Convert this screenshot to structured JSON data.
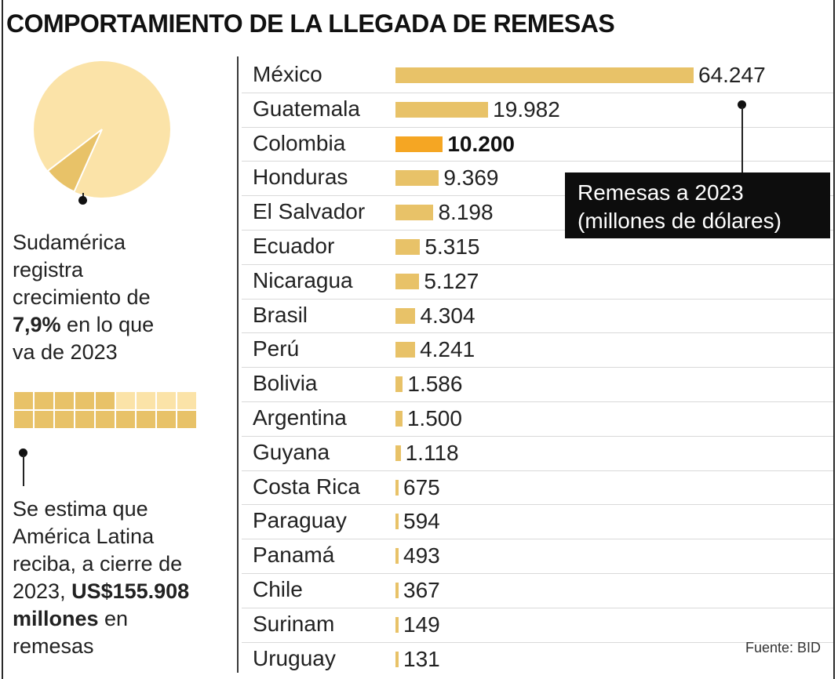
{
  "title": "COMPORTAMIENTO DE LA LLEGADA DE REMESAS",
  "pie": {
    "share_percent": 7.9,
    "colors": {
      "slice": "#e8c268",
      "rest": "#fbe3a8"
    }
  },
  "note_south_america": {
    "line1": "Sudamérica",
    "line2": "registra",
    "line3": "crecimiento de",
    "line4_bold": "7,9%",
    "line4_rest": " en lo que",
    "line5": "va de 2023"
  },
  "waffle": {
    "rows": 2,
    "cols": 9,
    "filled_top_row": 5,
    "filled_bottom_row": 9,
    "colors": {
      "filled": "#e8c268",
      "empty": "#fbe3a8"
    }
  },
  "note_latam": {
    "line1": "Se estima que",
    "line2": "América Latina",
    "line3": "reciba, a cierre de",
    "line4_pre": "2023, ",
    "line4_bold": "US$155.908",
    "line5_bold": "millones",
    "line5_rest": " en",
    "line6": "remesas"
  },
  "legend": {
    "line1": "Remesas a 2023",
    "line2": "(millones de dólares)"
  },
  "source": "Fuente: BID",
  "chart_data": {
    "type": "bar",
    "orientation": "horizontal",
    "title": "COMPORTAMIENTO DE LA LLEGADA DE REMESAS",
    "categories": [
      "México",
      "Guatemala",
      "Colombia",
      "Honduras",
      "El Salvador",
      "Ecuador",
      "Nicaragua",
      "Brasil",
      "Perú",
      "Bolivia",
      "Argentina",
      "Guyana",
      "Costa Rica",
      "Paraguay",
      "Panamá",
      "Chile",
      "Surinam",
      "Uruguay"
    ],
    "values": [
      64247,
      19982,
      10200,
      9369,
      8198,
      5315,
      5127,
      4304,
      4241,
      1586,
      1500,
      1118,
      675,
      594,
      493,
      367,
      149,
      131
    ],
    "labels": [
      "64.247",
      "19.982",
      "10.200",
      "9.369",
      "8.198",
      "5.315",
      "5.127",
      "4.304",
      "4.241",
      "1.586",
      "1.500",
      "1.118",
      "675",
      "594",
      "493",
      "367",
      "149",
      "131"
    ],
    "highlight": "Colombia",
    "colors": {
      "bar": "#e8c268",
      "highlight": "#f5a623"
    },
    "unit": "millones de dólares",
    "grid": false
  }
}
